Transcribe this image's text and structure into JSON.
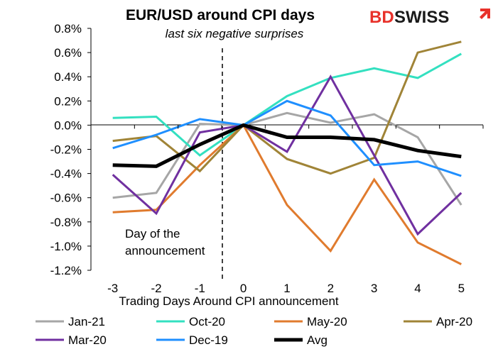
{
  "brand": {
    "logo_bd": "BD",
    "logo_swiss": "SWISS",
    "bd_color": "#e8312a",
    "swiss_color": "#1a1a1a"
  },
  "chart_data": {
    "type": "line",
    "title": "EUR/USD around CPI days",
    "subtitle": "last six negative surprises",
    "xlabel": "Trading Days Around  CPI announcement",
    "ylabel": "",
    "x": [
      -3,
      -2,
      -1,
      0,
      1,
      2,
      3,
      4,
      5
    ],
    "x_tick_labels": [
      "-3",
      "-2",
      "-1",
      "0",
      "1",
      "2",
      "3",
      "4",
      "5"
    ],
    "ylim": [
      -1.2,
      0.8
    ],
    "y_ticks": [
      -1.2,
      -1.0,
      -0.8,
      -0.6,
      -0.4,
      -0.2,
      0.0,
      0.2,
      0.4,
      0.6,
      0.8
    ],
    "y_tick_labels": [
      "-1.2%",
      "-1.0%",
      "-0.8%",
      "-0.6%",
      "-0.4%",
      "-0.2%",
      "0.0%",
      "0.2%",
      "0.4%",
      "0.6%",
      "0.8%"
    ],
    "grid": false,
    "legend_position": "bottom",
    "annotation": {
      "line1": "Day of the",
      "line2": "announcement",
      "x": 0
    },
    "series": [
      {
        "name": "Jan-21",
        "color": "#a6a6a6",
        "width": 3,
        "values": [
          -0.6,
          -0.56,
          0.01,
          0.0,
          0.1,
          0.02,
          0.09,
          -0.1,
          -0.66
        ]
      },
      {
        "name": "Oct-20",
        "color": "#33e0c0",
        "width": 3,
        "values": [
          0.06,
          0.07,
          -0.25,
          0.0,
          0.24,
          0.39,
          0.47,
          0.39,
          0.59
        ]
      },
      {
        "name": "May-20",
        "color": "#e07b2e",
        "width": 3,
        "values": [
          -0.72,
          -0.7,
          -0.33,
          0.0,
          -0.66,
          -1.04,
          -0.45,
          -0.97,
          -1.15
        ]
      },
      {
        "name": "Apr-20",
        "color": "#a08437",
        "width": 3,
        "values": [
          -0.13,
          -0.09,
          -0.38,
          0.0,
          -0.28,
          -0.4,
          -0.27,
          0.6,
          0.69
        ]
      },
      {
        "name": "Mar-20",
        "color": "#7030a0",
        "width": 3,
        "values": [
          -0.41,
          -0.73,
          -0.06,
          0.0,
          -0.22,
          0.4,
          -0.25,
          -0.9,
          -0.56
        ]
      },
      {
        "name": "Dec-19",
        "color": "#1f8fff",
        "width": 3,
        "values": [
          -0.19,
          -0.08,
          0.05,
          0.0,
          0.2,
          0.08,
          -0.33,
          -0.3,
          -0.42
        ]
      },
      {
        "name": "Avg",
        "color": "#000000",
        "width": 5,
        "values": [
          -0.33,
          -0.34,
          -0.16,
          0.0,
          -0.1,
          -0.1,
          -0.12,
          -0.21,
          -0.26
        ]
      }
    ]
  }
}
